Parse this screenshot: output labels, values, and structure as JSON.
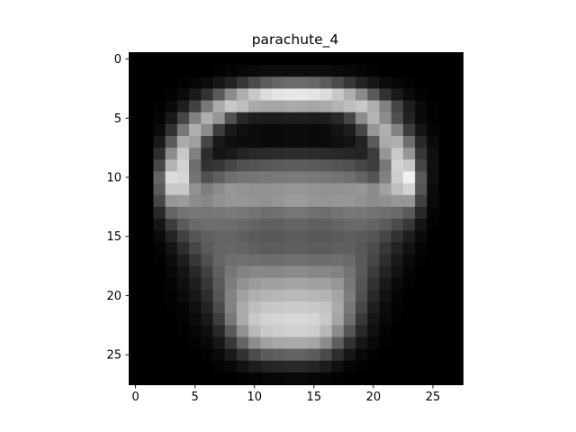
{
  "chart_data": {
    "type": "heatmap",
    "title": "parachute_4",
    "xlabel": "",
    "ylabel": "",
    "colormap": "gray",
    "rows": 28,
    "cols": 28,
    "xlim": [
      -0.5,
      27.5
    ],
    "ylim": [
      27.5,
      -0.5
    ],
    "x_ticks": [
      0,
      5,
      10,
      15,
      20,
      25
    ],
    "y_ticks": [
      0,
      5,
      10,
      15,
      20,
      25
    ],
    "x_tick_labels": [
      "0",
      "5",
      "10",
      "15",
      "20",
      "25"
    ],
    "y_tick_labels": [
      "0",
      "5",
      "10",
      "15",
      "20",
      "25"
    ],
    "grid": false,
    "values": [
      [
        0,
        0,
        0,
        0,
        0,
        0,
        0,
        0,
        0,
        0,
        0,
        0,
        0,
        0,
        0,
        0,
        0,
        0,
        0,
        0,
        0,
        0,
        0,
        0,
        0,
        0,
        0,
        0
      ],
      [
        0,
        0,
        0,
        0,
        0,
        0,
        0,
        2,
        5,
        8,
        10,
        12,
        13,
        13,
        13,
        13,
        12,
        10,
        8,
        5,
        2,
        0,
        0,
        0,
        0,
        0,
        0,
        0
      ],
      [
        0,
        0,
        0,
        0,
        2,
        6,
        12,
        22,
        35,
        55,
        75,
        92,
        103,
        108,
        108,
        103,
        92,
        75,
        55,
        35,
        22,
        12,
        6,
        2,
        0,
        0,
        0,
        0
      ],
      [
        0,
        0,
        0,
        3,
        10,
        25,
        50,
        90,
        140,
        175,
        200,
        220,
        228,
        232,
        232,
        228,
        220,
        200,
        175,
        140,
        90,
        50,
        25,
        10,
        3,
        0,
        0,
        0
      ],
      [
        0,
        0,
        2,
        10,
        30,
        65,
        120,
        170,
        200,
        190,
        170,
        165,
        165,
        170,
        168,
        165,
        170,
        180,
        190,
        200,
        175,
        130,
        70,
        30,
        10,
        2,
        0,
        0
      ],
      [
        0,
        0,
        5,
        25,
        70,
        130,
        175,
        150,
        80,
        40,
        30,
        28,
        28,
        30,
        30,
        28,
        30,
        40,
        70,
        140,
        180,
        140,
        80,
        35,
        10,
        2,
        0,
        0
      ],
      [
        0,
        0,
        10,
        50,
        120,
        175,
        140,
        60,
        25,
        15,
        12,
        10,
        10,
        12,
        12,
        10,
        12,
        20,
        30,
        70,
        150,
        175,
        130,
        60,
        20,
        5,
        0,
        0
      ],
      [
        0,
        0,
        25,
        90,
        170,
        160,
        70,
        25,
        15,
        12,
        12,
        10,
        10,
        12,
        12,
        10,
        12,
        15,
        20,
        35,
        90,
        170,
        175,
        110,
        40,
        10,
        0,
        0
      ],
      [
        0,
        0,
        45,
        140,
        200,
        130,
        45,
        20,
        25,
        35,
        40,
        42,
        44,
        45,
        45,
        44,
        42,
        40,
        38,
        35,
        60,
        150,
        200,
        150,
        55,
        15,
        0,
        0
      ],
      [
        0,
        0,
        70,
        180,
        210,
        110,
        50,
        55,
        70,
        80,
        85,
        88,
        90,
        92,
        92,
        90,
        88,
        85,
        80,
        70,
        60,
        120,
        210,
        200,
        70,
        15,
        0,
        0
      ],
      [
        0,
        0,
        100,
        220,
        215,
        115,
        80,
        95,
        110,
        115,
        118,
        120,
        120,
        122,
        122,
        120,
        118,
        115,
        110,
        100,
        85,
        130,
        205,
        240,
        90,
        15,
        0,
        0
      ],
      [
        0,
        0,
        90,
        200,
        200,
        145,
        125,
        140,
        150,
        148,
        145,
        145,
        148,
        150,
        150,
        148,
        145,
        145,
        148,
        150,
        140,
        160,
        190,
        210,
        85,
        12,
        0,
        0
      ],
      [
        0,
        0,
        70,
        150,
        155,
        140,
        135,
        145,
        150,
        150,
        148,
        145,
        150,
        155,
        155,
        150,
        148,
        150,
        150,
        145,
        140,
        145,
        150,
        150,
        65,
        10,
        0,
        0
      ],
      [
        0,
        0,
        40,
        100,
        115,
        120,
        118,
        120,
        122,
        120,
        115,
        110,
        112,
        118,
        118,
        112,
        110,
        115,
        120,
        118,
        115,
        110,
        105,
        90,
        40,
        5,
        0,
        0
      ],
      [
        0,
        0,
        20,
        60,
        90,
        105,
        110,
        110,
        108,
        105,
        100,
        95,
        95,
        100,
        100,
        95,
        95,
        100,
        105,
        105,
        100,
        90,
        75,
        55,
        20,
        2,
        0,
        0
      ],
      [
        0,
        0,
        10,
        35,
        65,
        85,
        95,
        100,
        100,
        95,
        90,
        88,
        88,
        92,
        92,
        88,
        88,
        90,
        95,
        92,
        85,
        70,
        50,
        30,
        10,
        0,
        0,
        0
      ],
      [
        0,
        0,
        5,
        20,
        45,
        70,
        90,
        100,
        102,
        100,
        95,
        92,
        92,
        95,
        95,
        92,
        92,
        95,
        95,
        88,
        75,
        55,
        35,
        18,
        5,
        0,
        0,
        0
      ],
      [
        0,
        0,
        2,
        12,
        30,
        55,
        80,
        100,
        110,
        112,
        110,
        108,
        108,
        112,
        112,
        108,
        108,
        110,
        105,
        90,
        70,
        45,
        25,
        10,
        2,
        0,
        0,
        0
      ],
      [
        0,
        0,
        0,
        8,
        20,
        40,
        65,
        95,
        118,
        130,
        135,
        135,
        135,
        140,
        140,
        135,
        135,
        130,
        115,
        90,
        60,
        35,
        18,
        6,
        0,
        0,
        0,
        0
      ],
      [
        0,
        0,
        0,
        5,
        15,
        30,
        55,
        90,
        125,
        145,
        155,
        160,
        160,
        165,
        165,
        160,
        160,
        150,
        120,
        85,
        50,
        25,
        10,
        3,
        0,
        0,
        0,
        0
      ],
      [
        0,
        0,
        0,
        3,
        10,
        22,
        45,
        85,
        130,
        160,
        175,
        180,
        182,
        185,
        185,
        182,
        180,
        165,
        125,
        80,
        40,
        18,
        6,
        0,
        0,
        0,
        0,
        0
      ],
      [
        0,
        0,
        0,
        2,
        6,
        15,
        35,
        75,
        130,
        170,
        190,
        198,
        200,
        202,
        202,
        200,
        195,
        170,
        120,
        70,
        30,
        12,
        3,
        0,
        0,
        0,
        0,
        0
      ],
      [
        0,
        0,
        0,
        0,
        4,
        10,
        25,
        60,
        120,
        170,
        200,
        210,
        212,
        215,
        215,
        212,
        200,
        165,
        110,
        55,
        22,
        8,
        2,
        0,
        0,
        0,
        0,
        0
      ],
      [
        0,
        0,
        0,
        0,
        2,
        6,
        15,
        40,
        90,
        145,
        185,
        200,
        205,
        208,
        208,
        205,
        185,
        140,
        85,
        40,
        15,
        4,
        0,
        0,
        0,
        0,
        0,
        0
      ],
      [
        0,
        0,
        0,
        0,
        0,
        3,
        8,
        22,
        55,
        100,
        140,
        160,
        168,
        170,
        170,
        165,
        140,
        95,
        50,
        22,
        8,
        2,
        0,
        0,
        0,
        0,
        0,
        0
      ],
      [
        0,
        0,
        0,
        0,
        0,
        0,
        3,
        10,
        25,
        50,
        75,
        90,
        95,
        98,
        98,
        92,
        75,
        45,
        22,
        8,
        3,
        0,
        0,
        0,
        0,
        0,
        0,
        0
      ],
      [
        0,
        0,
        0,
        0,
        0,
        0,
        0,
        3,
        8,
        18,
        28,
        35,
        38,
        40,
        40,
        36,
        28,
        15,
        6,
        2,
        0,
        0,
        0,
        0,
        0,
        0,
        0,
        0
      ],
      [
        0,
        0,
        0,
        0,
        0,
        0,
        0,
        0,
        0,
        2,
        4,
        6,
        7,
        8,
        8,
        6,
        4,
        2,
        0,
        0,
        0,
        0,
        0,
        0,
        0,
        0,
        0,
        0
      ]
    ]
  }
}
